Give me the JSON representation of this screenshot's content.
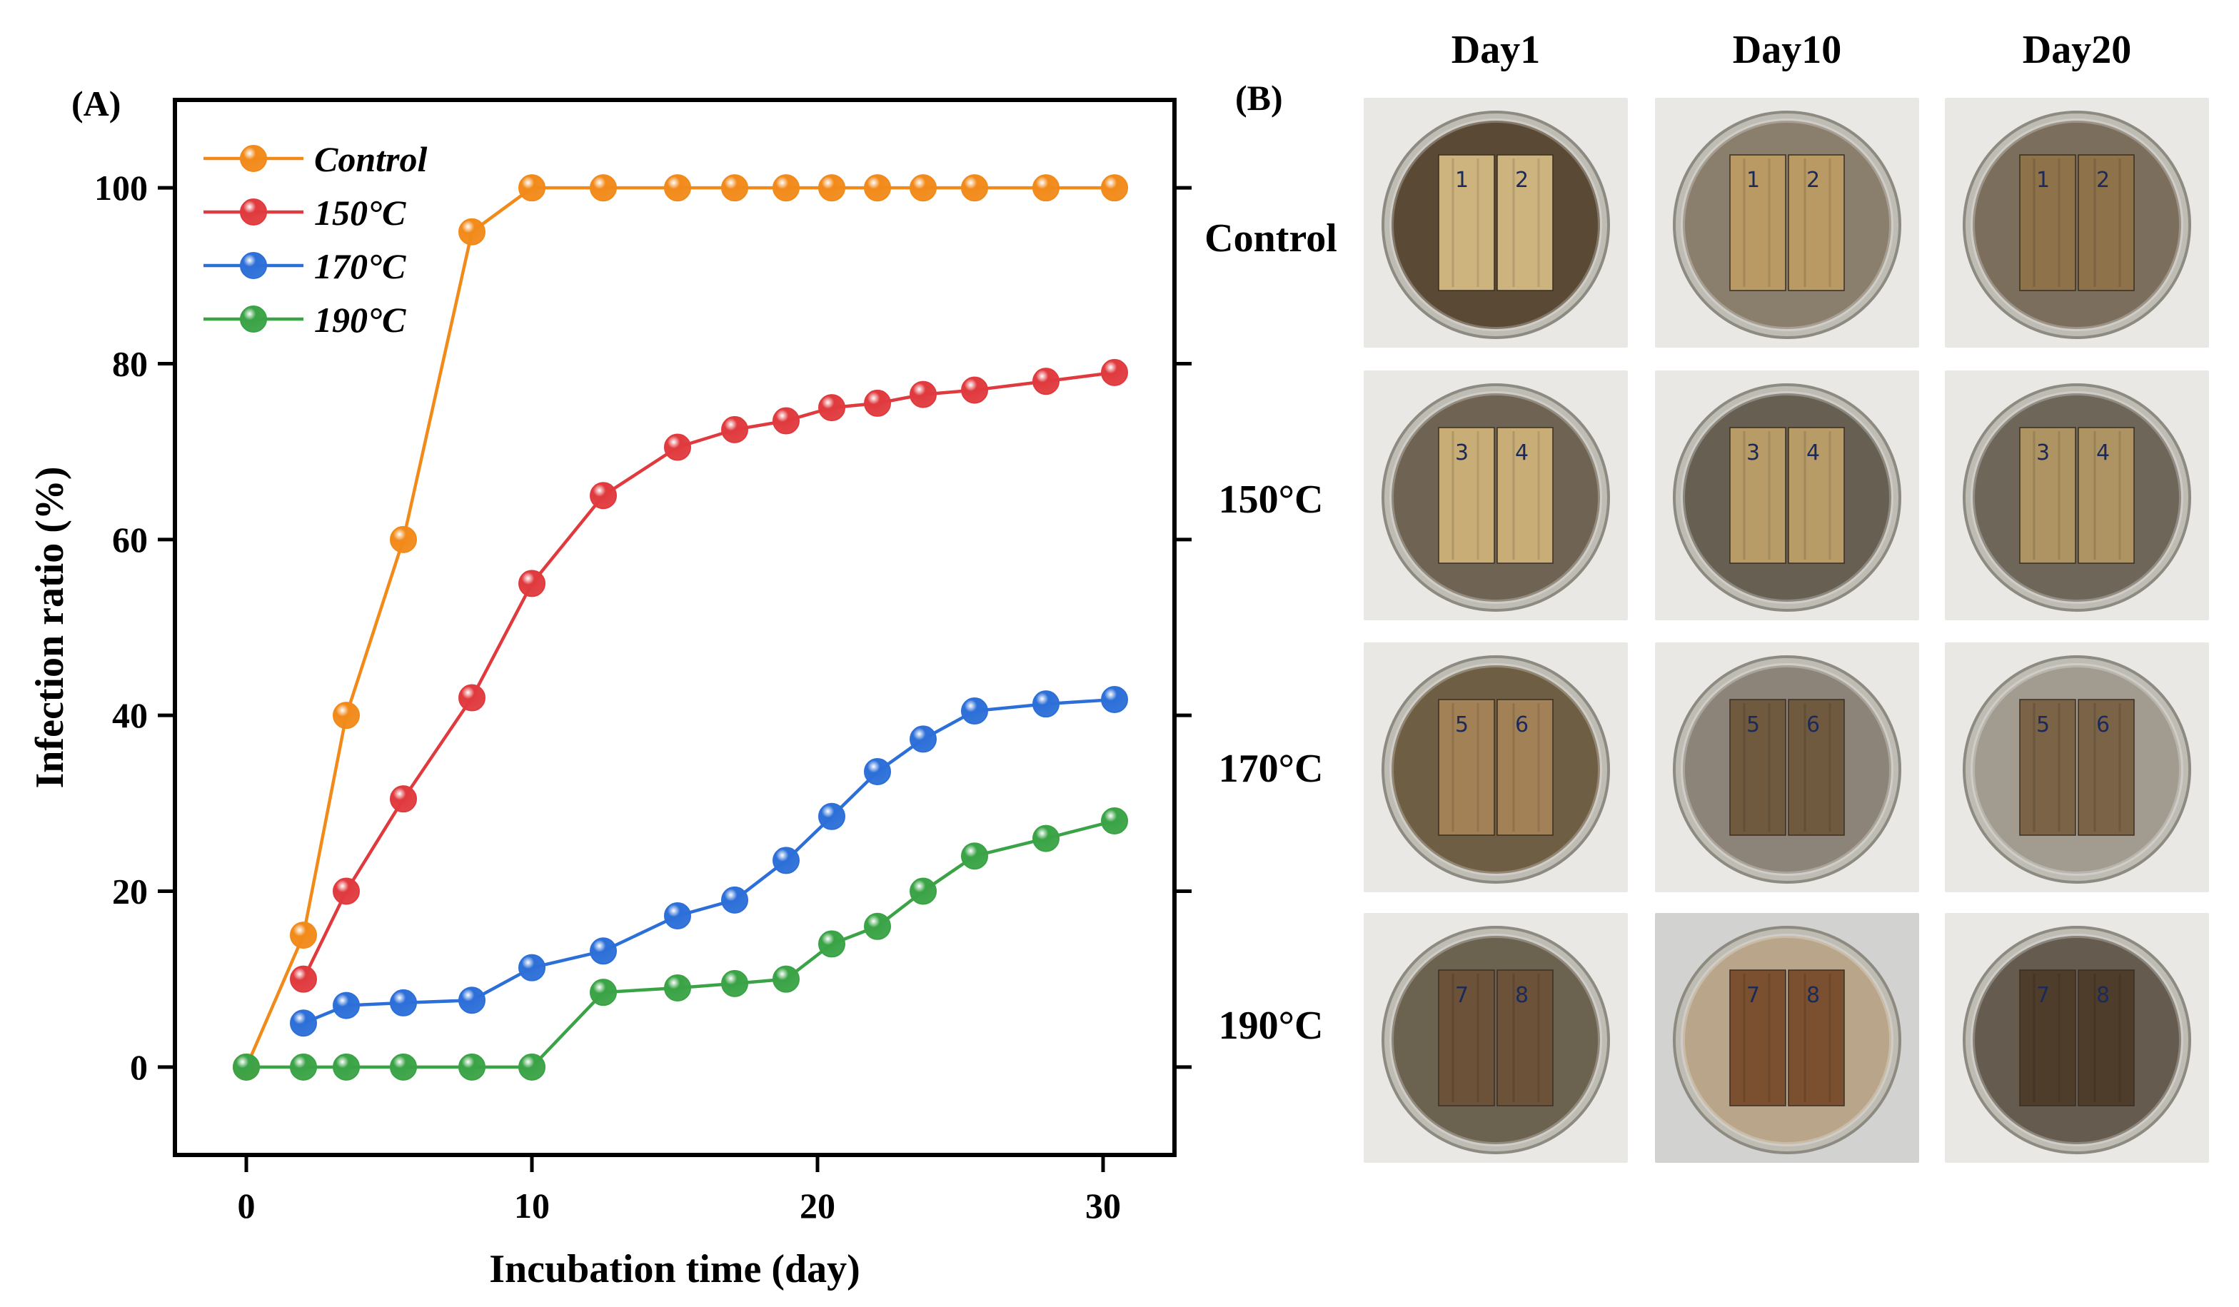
{
  "panel_a_label": "(A)",
  "panel_b_label": "(B)",
  "chart_data": {
    "type": "line",
    "title": "",
    "xlabel": "Incubation time (day)",
    "ylabel": "Infection ratio (%)",
    "xlim": [
      -2.5,
      32.5
    ],
    "ylim": [
      -10,
      110
    ],
    "xticks": [
      0,
      10,
      20,
      30
    ],
    "yticks": [
      0,
      20,
      40,
      60,
      80,
      100
    ],
    "grid": false,
    "legend_position": "top-left",
    "series": [
      {
        "name": "Control",
        "color": "#f28a1a",
        "x": [
          0,
          2,
          3.5,
          5.5,
          7.9,
          10,
          12.5,
          15.1,
          17.1,
          18.9,
          20.5,
          22.1,
          23.7,
          25.5,
          28,
          30.4
        ],
        "y": [
          0,
          15,
          40,
          60,
          95,
          100,
          100,
          100,
          100,
          100,
          100,
          100,
          100,
          100,
          100,
          100
        ]
      },
      {
        "name": "150°C",
        "color": "#e03a3e",
        "x": [
          2,
          3.5,
          5.5,
          7.9,
          10,
          12.5,
          15.1,
          17.1,
          18.9,
          20.5,
          22.1,
          23.7,
          25.5,
          28,
          30.4
        ],
        "y": [
          10,
          20,
          30.5,
          42,
          55,
          65,
          70.5,
          72.5,
          73.5,
          75,
          75.5,
          76.5,
          77,
          78,
          79
        ]
      },
      {
        "name": "170°C",
        "color": "#2c6fd8",
        "x": [
          2,
          3.5,
          5.5,
          7.9,
          10,
          12.5,
          15.1,
          17.1,
          18.9,
          20.5,
          22.1,
          23.7,
          25.5,
          28,
          30.4
        ],
        "y": [
          5,
          7,
          7.3,
          7.6,
          11.3,
          13.2,
          17.2,
          19,
          23.5,
          28.5,
          33.6,
          37.3,
          40.5,
          41.3,
          41.8
        ]
      },
      {
        "name": "190°C",
        "color": "#3aa346",
        "x": [
          0,
          2,
          3.5,
          5.5,
          7.9,
          10,
          12.5,
          15.1,
          17.1,
          18.9,
          20.5,
          22.1,
          23.7,
          25.5,
          28,
          30.4
        ],
        "y": [
          0,
          0,
          0,
          0,
          0,
          0,
          8.5,
          9,
          9.5,
          10,
          14,
          16,
          20,
          24,
          26,
          28
        ]
      }
    ]
  },
  "panel_b": {
    "columns": [
      "Day1",
      "Day10",
      "Day20"
    ],
    "rows": [
      "Control",
      "150°C",
      "170°C",
      "190°C"
    ],
    "sample_numbers": [
      [
        "1",
        "2"
      ],
      [
        "3",
        "4"
      ],
      [
        "5",
        "6"
      ],
      [
        "7",
        "8"
      ]
    ],
    "wood_colors": [
      [
        "#cdb37e",
        "#b99a64",
        "#8d724a"
      ],
      [
        "#c8ad76",
        "#b89c68",
        "#ad9462"
      ],
      [
        "#a38156",
        "#6f5a40",
        "#7a6346"
      ],
      [
        "#6b5238",
        "#7a5030",
        "#4f3d2c"
      ]
    ],
    "soil_colors": [
      [
        "#5a4a35",
        "#8a7e6d",
        "#7b6e5c"
      ],
      [
        "#6f6453",
        "#676052",
        "#6f665a"
      ],
      [
        "#6e5e44",
        "#8c8478",
        "#a29c90"
      ],
      [
        "#6c6250",
        "#b9a58a",
        "#655b4e"
      ]
    ]
  }
}
